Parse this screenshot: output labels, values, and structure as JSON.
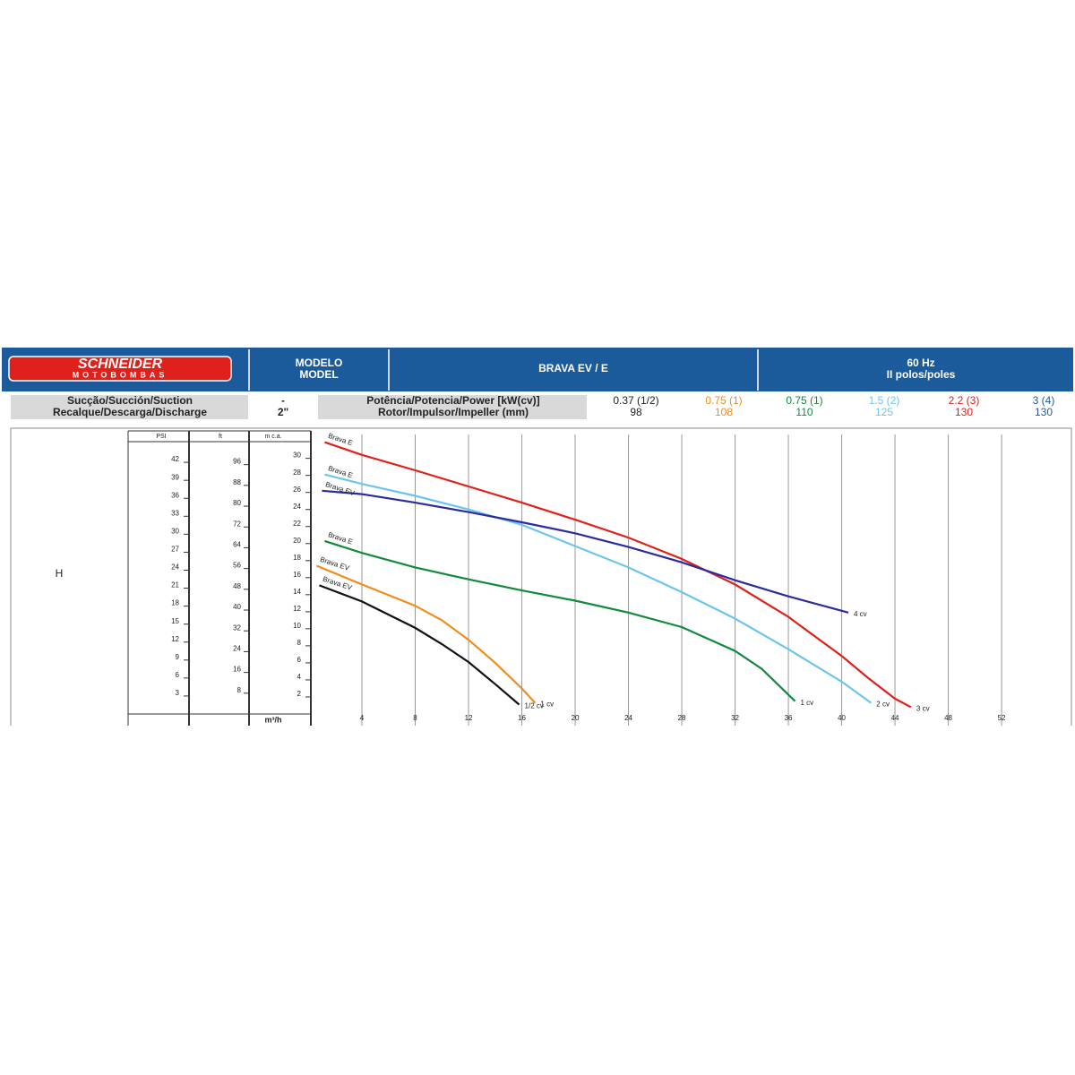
{
  "header": {
    "logo": [
      "SCHNEIDER",
      "MOTOBOMBAS"
    ],
    "model_label": [
      "MODELO",
      "MODEL"
    ],
    "model": "BRAVA EV / E",
    "frequency": [
      "60 Hz",
      "II polos/poles"
    ]
  },
  "table": {
    "rows": [
      [
        "Sucção/Succión/Suction",
        "-",
        "Potência/Potencia/Power [kW(cv)]",
        "0.37 (1/2)",
        "0.75 (1)",
        "0.75 (1)",
        "1.5 (2)",
        "2.2 (3)",
        "3 (4)"
      ],
      [
        "Recalque/Descarga/Discharge",
        "2\"",
        "Rotor/Impulsor/Impeller (mm)",
        "98",
        "108",
        "110",
        "125",
        "130",
        "130"
      ]
    ],
    "colors": [
      "#222222",
      "#f08c1e",
      "#118a3d",
      "#6cc5ec",
      "#e0201b",
      "#1f5a9f"
    ]
  },
  "chart_data": {
    "type": "line",
    "y_label": "H",
    "x_label": "m³/h",
    "y_axis_title": "m c.a.",
    "y2_axis_title": "PSI",
    "y3_axis_title": "ft",
    "xlim": [
      0,
      56.6
    ],
    "xticks": [
      4,
      8,
      12,
      16,
      20,
      24,
      28,
      32,
      36,
      40,
      44,
      48,
      52
    ],
    "ylim": [
      0,
      32.8
    ],
    "yticks": [
      2,
      4,
      6,
      8,
      10,
      12,
      14,
      16,
      18,
      20,
      22,
      24,
      26,
      28,
      30
    ],
    "y2lim": [
      0,
      46.65
    ],
    "y2ticks": [
      3,
      6,
      9,
      12,
      15,
      18,
      21,
      24,
      27,
      30,
      33,
      36,
      39,
      42
    ],
    "y3lim": [
      0,
      107.6
    ],
    "y3ticks": [
      8,
      16,
      24,
      32,
      40,
      48,
      56,
      64,
      72,
      80,
      88,
      96
    ],
    "grid": true,
    "series": [
      {
        "name": "Brava E",
        "end_label": "3 cv",
        "color": "#e0201b",
        "x": [
          1.2,
          4,
          8,
          12,
          16,
          20,
          24,
          28,
          32,
          36,
          40,
          42,
          44,
          45.2
        ],
        "values": [
          31.9,
          30.4,
          28.6,
          26.7,
          24.8,
          22.8,
          20.7,
          18.2,
          15.2,
          11.4,
          6.8,
          4.2,
          1.8,
          0.8
        ]
      },
      {
        "name": "Brava E",
        "end_label": "2 cv",
        "color": "#6cc5ec",
        "x": [
          1.2,
          4,
          8,
          12,
          16,
          20,
          24,
          28,
          32,
          36,
          40,
          42.2
        ],
        "values": [
          28.1,
          27,
          25.6,
          24,
          22.2,
          19.7,
          17.2,
          14.3,
          11.2,
          7.6,
          3.8,
          1.3
        ]
      },
      {
        "name": "Brava EV",
        "end_label": "4 cv",
        "color": "#2b2ba0",
        "x": [
          1,
          4,
          8,
          12,
          16,
          20,
          24,
          28,
          32,
          36,
          40.5
        ],
        "values": [
          26.2,
          25.8,
          24.8,
          23.7,
          22.5,
          21.2,
          19.6,
          17.8,
          15.7,
          13.8,
          11.9
        ]
      },
      {
        "name": "Brava E",
        "end_label": "1 cv",
        "color": "#118a3d",
        "x": [
          1.2,
          4,
          8,
          12,
          16,
          20,
          24,
          28,
          32,
          34,
          36.5
        ],
        "values": [
          20.3,
          18.9,
          17.2,
          15.8,
          14.5,
          13.3,
          11.9,
          10.2,
          7.4,
          5.3,
          1.5
        ]
      },
      {
        "name": "Brava EV",
        "end_label": "1 cv",
        "color": "#f08c1e",
        "x": [
          0.6,
          4,
          8,
          10,
          12,
          14,
          16,
          17
        ],
        "values": [
          17.4,
          15.2,
          12.7,
          11,
          8.7,
          6,
          3,
          1.3
        ]
      },
      {
        "name": "Brava EV",
        "end_label": "1/2 cv",
        "color": "#111111",
        "x": [
          0.8,
          4,
          8,
          10,
          12,
          14,
          15.8
        ],
        "values": [
          15.1,
          13.2,
          10.1,
          8.2,
          6.1,
          3.5,
          1.1
        ]
      }
    ]
  }
}
